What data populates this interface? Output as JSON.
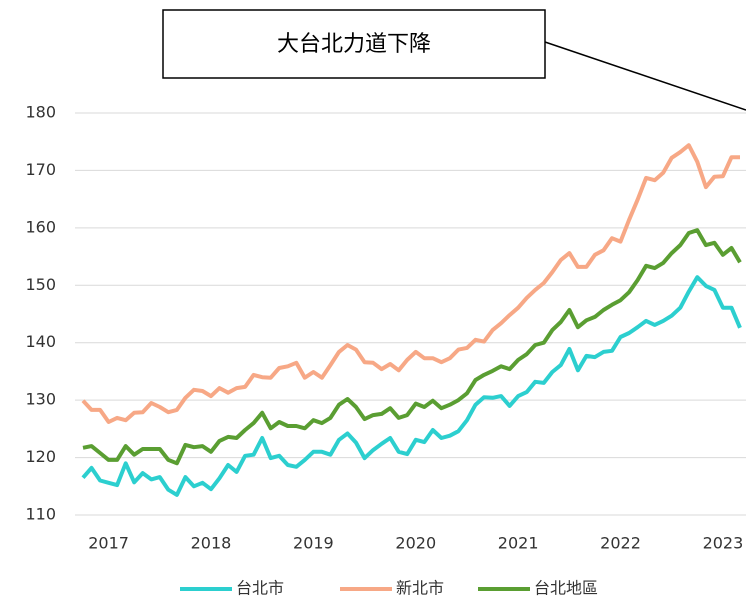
{
  "chart_data": {
    "type": "line",
    "title": "大台北力道下降",
    "categories": [
      null,
      null,
      null,
      "2017",
      null,
      null,
      null,
      null,
      null,
      null,
      null,
      null,
      null,
      null,
      null,
      "2018",
      null,
      null,
      null,
      null,
      null,
      null,
      null,
      null,
      null,
      null,
      null,
      "2019",
      null,
      null,
      null,
      null,
      null,
      null,
      null,
      null,
      null,
      null,
      null,
      "2020",
      null,
      null,
      null,
      null,
      null,
      null,
      null,
      null,
      null,
      null,
      null,
      "2021",
      null,
      null,
      null,
      null,
      null,
      null,
      null,
      null,
      null,
      null,
      null,
      "2022",
      null,
      null,
      null,
      null,
      null,
      null,
      null,
      null,
      null,
      null,
      null,
      "2023",
      null,
      null
    ],
    "series": [
      {
        "name": "台北市",
        "color": "#2ccfcf",
        "values": [
          116.5,
          118.2,
          116,
          115.6,
          115.2,
          119,
          115.7,
          117.3,
          116.2,
          116.6,
          114.4,
          113.5,
          116.6,
          115,
          115.6,
          114.5,
          116.4,
          118.7,
          117.5,
          120.3,
          120.5,
          123.4,
          119.9,
          120.3,
          118.7,
          118.4,
          119.6,
          121,
          121,
          120.5,
          123.1,
          124.2,
          122.6,
          119.9,
          121.3,
          122.4,
          123.4,
          121,
          120.6,
          123.1,
          122.7,
          124.8,
          123.4,
          123.8,
          124.6,
          126.5,
          129.2,
          130.5,
          130.4,
          130.7,
          129,
          130.7,
          131.4,
          133.2,
          133,
          134.9,
          136.1,
          138.9,
          135.2,
          137.7,
          137.5,
          138.4,
          138.6,
          141,
          141.7,
          142.7,
          143.8,
          143.1,
          143.8,
          144.7,
          146.1,
          148.9,
          151.4,
          149.9,
          149.2,
          146.1,
          146.1,
          142.6
        ]
      },
      {
        "name": "新北市",
        "color": "#f7a886",
        "values": [
          129.9,
          128.3,
          128.3,
          126.2,
          126.9,
          126.5,
          127.8,
          127.9,
          129.5,
          128.8,
          127.9,
          128.3,
          130.4,
          131.8,
          131.6,
          130.7,
          132.1,
          131.3,
          132.1,
          132.3,
          134.4,
          134,
          133.9,
          135.6,
          135.9,
          136.5,
          133.9,
          134.9,
          133.9,
          136.1,
          138.4,
          139.6,
          138.8,
          136.6,
          136.5,
          135.4,
          136.3,
          135.2,
          137,
          138.4,
          137.3,
          137.3,
          136.6,
          137.3,
          138.8,
          139.1,
          140.5,
          140.2,
          142.2,
          143.4,
          144.8,
          146.1,
          147.8,
          149.2,
          150.4,
          152.3,
          154.4,
          155.6,
          153.2,
          153.2,
          155.3,
          156.1,
          158.2,
          157.6,
          161.4,
          164.9,
          168.7,
          168.3,
          169.6,
          172.2,
          173.2,
          174.4,
          171.5,
          167.1,
          168.9,
          169,
          172.3,
          172.3
        ]
      },
      {
        "name": "台北地區",
        "color": "#5a9e32",
        "values": [
          121.7,
          122,
          120.8,
          119.6,
          119.6,
          122,
          120.5,
          121.5,
          121.5,
          121.5,
          119.6,
          119,
          122.2,
          121.8,
          122,
          121,
          122.9,
          123.6,
          123.4,
          124.8,
          126,
          127.8,
          125.1,
          126.2,
          125.5,
          125.5,
          125.1,
          126.5,
          126,
          126.9,
          129.2,
          130.2,
          128.8,
          126.7,
          127.4,
          127.6,
          128.6,
          126.9,
          127.4,
          129.4,
          128.8,
          129.9,
          128.6,
          129.2,
          130,
          131.2,
          133.5,
          134.4,
          135.1,
          135.9,
          135.4,
          137,
          138,
          139.6,
          140,
          142.2,
          143.6,
          145.7,
          142.7,
          143.9,
          144.5,
          145.7,
          146.6,
          147.4,
          148.8,
          150.9,
          153.4,
          153,
          153.9,
          155.6,
          157,
          159.1,
          159.6,
          157,
          157.4,
          155.3,
          156.5,
          154
        ]
      }
    ],
    "ylim": [
      110,
      180
    ],
    "yticks": [
      110,
      120,
      130,
      140,
      150,
      160,
      170,
      180
    ],
    "grid": true,
    "legend": "bottom"
  }
}
